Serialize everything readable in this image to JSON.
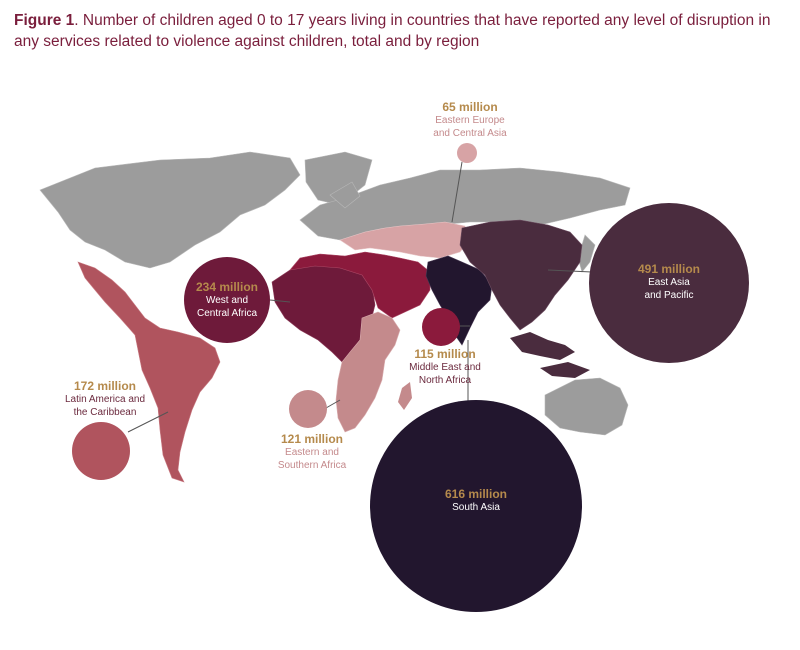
{
  "figure": {
    "label": "Figure 1",
    "caption": ". Number of children aged 0 to 17 years living in countries that have reported any level of disruption in any services related to violence against children, total and by region"
  },
  "colors": {
    "land_default": "#9c9c9c",
    "eeca": "#d7a3a5",
    "eapr": "#4a2c3e",
    "sa": "#22162e",
    "mena": "#8b1a3c",
    "wca": "#6e1a3a",
    "esa": "#c48a8c",
    "lac": "#b0545e",
    "value_text": "#b58a4c"
  },
  "chart_data": {
    "type": "map-bubbles",
    "unit": "million",
    "regions": [
      {
        "id": "eeca",
        "value_label": "65 million",
        "name": "Eastern Europe and Central Asia",
        "value": 65
      },
      {
        "id": "eapr",
        "value_label": "491 million",
        "name": "East Asia and Pacific",
        "value": 491
      },
      {
        "id": "wca",
        "value_label": "234 million",
        "name": "West and Central Africa",
        "value": 234
      },
      {
        "id": "mena",
        "value_label": "115 million",
        "name": "Middle East and North Africa",
        "value": 115
      },
      {
        "id": "lac",
        "value_label": "172 million",
        "name": "Latin America and the Caribbean",
        "value": 172
      },
      {
        "id": "esa",
        "value_label": "121 million",
        "name": "Eastern and Southern Africa",
        "value": 121
      },
      {
        "id": "sa",
        "value_label": "616 million",
        "name": "South Asia",
        "value": 616
      }
    ]
  },
  "labels": {
    "eeca": {
      "value": "65 million",
      "line1": "Eastern Europe",
      "line2": "and Central Asia"
    },
    "eapr": {
      "value": "491 million",
      "line1": "East Asia",
      "line2": "and Pacific"
    },
    "wca": {
      "value": "234 million",
      "line1": "West and",
      "line2": "Central Africa"
    },
    "mena": {
      "value": "115 million",
      "line1": "Middle East and",
      "line2": "North Africa"
    },
    "lac": {
      "value": "172 million",
      "line1": "Latin America and",
      "line2": "the Caribbean"
    },
    "esa": {
      "value": "121 million",
      "line1": "Eastern and",
      "line2": "Southern Africa"
    },
    "sa": {
      "value": "616 million",
      "line1": "South Asia",
      "line2": ""
    }
  }
}
